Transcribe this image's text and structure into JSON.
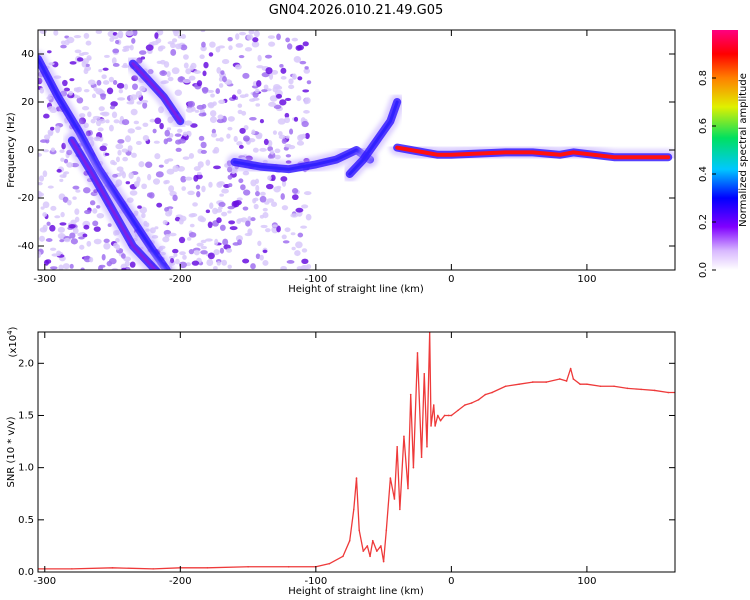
{
  "title": "GN04.2026.010.21.49.G05",
  "chart_data": [
    {
      "type": "heatmap",
      "xlabel": "Height of straight line (km)",
      "ylabel": "Frequency (Hz)",
      "xlim": [
        -305,
        165
      ],
      "ylim": [
        -50,
        50
      ],
      "x_ticks": [
        -300,
        -200,
        -100,
        0,
        100
      ],
      "x_tick_labels": [
        "-300",
        "-200",
        "-100",
        "0",
        "100"
      ],
      "y_ticks": [
        -40,
        -20,
        0,
        20,
        40
      ],
      "y_tick_labels": [
        "-40",
        "-20",
        "0",
        "20",
        "40"
      ],
      "colorbar": {
        "label": "Normalized spectral amplitude",
        "range": [
          0,
          1
        ],
        "ticks": [
          0.0,
          0.2,
          0.4,
          0.6,
          0.8
        ],
        "tick_labels": [
          "0.0",
          "0.2",
          "0.4",
          "0.6",
          "0.8"
        ],
        "colors": [
          "#ffffff",
          "#6a00d8",
          "#0000ff",
          "#00c8ff",
          "#00e060",
          "#e0f000",
          "#ff8000",
          "#ff0000",
          "#ff0080"
        ]
      },
      "tracks": [
        {
          "x": [
            -305,
            -290,
            -275,
            -260,
            -240,
            -220,
            -210
          ],
          "y": [
            38,
            22,
            8,
            -8,
            -25,
            -42,
            -50
          ],
          "amplitude": 0.35
        },
        {
          "x": [
            -280,
            -265,
            -250,
            -235,
            -215
          ],
          "y": [
            4,
            -10,
            -25,
            -40,
            -52
          ],
          "amplitude": 0.25
        },
        {
          "x": [
            -235,
            -225,
            -212,
            -200
          ],
          "y": [
            36,
            30,
            22,
            12
          ],
          "amplitude": 0.2
        },
        {
          "x": [
            -160,
            -140,
            -120,
            -100,
            -85,
            -70,
            -60
          ],
          "y": [
            -5,
            -7,
            -8,
            -6,
            -4,
            0,
            -4
          ],
          "amplitude": 0.4
        },
        {
          "x": [
            -75,
            -65,
            -55,
            -45,
            -40
          ],
          "y": [
            -10,
            -4,
            4,
            12,
            20
          ],
          "amplitude": 0.4
        },
        {
          "x": [
            -40,
            -30,
            -20,
            -10,
            0,
            40,
            60,
            80,
            90,
            120,
            160
          ],
          "y": [
            1,
            0,
            -1,
            -2,
            -2,
            -1,
            -1,
            -2,
            -1,
            -3,
            -3
          ],
          "amplitude": 0.9
        }
      ]
    },
    {
      "type": "line",
      "xlabel": "Height of straight line (km)",
      "ylabel": "SNR (10 * v/v)",
      "y_scale_note": "(x10",
      "y_scale_exp": "4",
      "y_scale_close": ")",
      "xlim": [
        -305,
        165
      ],
      "ylim": [
        0,
        2.3
      ],
      "x_ticks": [
        -300,
        -200,
        -100,
        0,
        100
      ],
      "x_tick_labels": [
        "-300",
        "-200",
        "-100",
        "0",
        "100"
      ],
      "y_ticks": [
        0,
        0.5,
        1.0,
        1.5,
        2.0
      ],
      "y_tick_labels": [
        "0.0",
        "0.5",
        "1.0",
        "1.5",
        "2.0"
      ],
      "color": "#ee3a3a",
      "x": [
        -305,
        -280,
        -250,
        -220,
        -200,
        -180,
        -150,
        -120,
        -100,
        -90,
        -80,
        -75,
        -72,
        -70,
        -68,
        -65,
        -62,
        -60,
        -58,
        -55,
        -52,
        -50,
        -48,
        -45,
        -42,
        -40,
        -38,
        -35,
        -32,
        -30,
        -28,
        -25,
        -22,
        -20,
        -18,
        -16,
        -15,
        -13,
        -12,
        -10,
        -8,
        -5,
        -2,
        0,
        5,
        10,
        15,
        20,
        25,
        30,
        40,
        50,
        60,
        70,
        80,
        85,
        88,
        90,
        95,
        100,
        110,
        120,
        130,
        140,
        150,
        160,
        165
      ],
      "y": [
        0.03,
        0.03,
        0.04,
        0.03,
        0.04,
        0.04,
        0.05,
        0.05,
        0.05,
        0.08,
        0.15,
        0.3,
        0.6,
        0.9,
        0.4,
        0.2,
        0.25,
        0.15,
        0.3,
        0.2,
        0.25,
        0.1,
        0.4,
        0.9,
        0.7,
        1.2,
        0.6,
        1.3,
        0.8,
        1.7,
        1.0,
        2.1,
        1.1,
        1.9,
        1.2,
        2.3,
        1.4,
        1.6,
        1.4,
        1.5,
        1.45,
        1.5,
        1.5,
        1.5,
        1.55,
        1.6,
        1.62,
        1.65,
        1.7,
        1.72,
        1.78,
        1.8,
        1.82,
        1.82,
        1.85,
        1.83,
        1.95,
        1.85,
        1.8,
        1.8,
        1.78,
        1.78,
        1.76,
        1.75,
        1.74,
        1.72,
        1.72
      ]
    }
  ]
}
